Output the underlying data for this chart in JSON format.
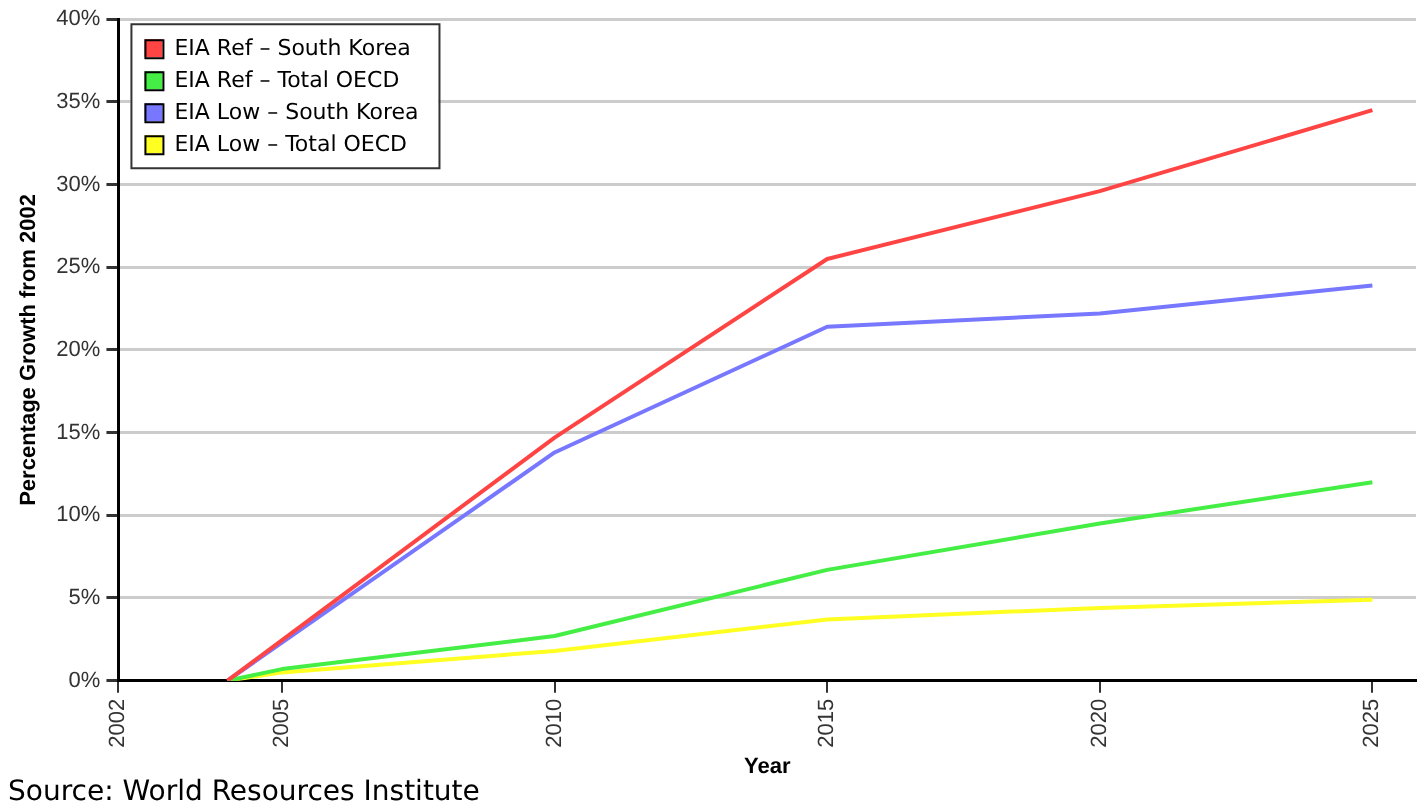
{
  "chart_data": {
    "type": "line",
    "xlabel": "Year",
    "ylabel": "Percentage Growth from 2002",
    "xlim": [
      2002,
      2025.8
    ],
    "xticks": [
      2002,
      2005,
      2010,
      2015,
      2020,
      2025
    ],
    "ylim": [
      0,
      40
    ],
    "yticks": [
      {
        "value": 0,
        "label": "0%"
      },
      {
        "value": 5,
        "label": "5%"
      },
      {
        "value": 10,
        "label": "10%"
      },
      {
        "value": 15,
        "label": "15%"
      },
      {
        "value": 20,
        "label": "20%"
      },
      {
        "value": 25,
        "label": "25%"
      },
      {
        "value": 30,
        "label": "30%"
      },
      {
        "value": 35,
        "label": "35%"
      },
      {
        "value": 40,
        "label": "40%"
      }
    ],
    "series": [
      {
        "name": "EIA Ref – South Korea",
        "color": "#ff4444",
        "x": [
          2004,
          2010,
          2015,
          2020,
          2025
        ],
        "values": [
          0,
          14.7,
          25.5,
          29.6,
          34.5
        ]
      },
      {
        "name": "EIA Ref – Total OECD",
        "color": "#44ee44",
        "x": [
          2004,
          2005,
          2010,
          2015,
          2020,
          2025
        ],
        "values": [
          0,
          0.7,
          2.7,
          6.7,
          9.5,
          12
        ]
      },
      {
        "name": "EIA Low – South Korea",
        "color": "#7777ff",
        "x": [
          2004,
          2010,
          2015,
          2020,
          2025
        ],
        "values": [
          0,
          13.8,
          21.4,
          22.2,
          23.9
        ]
      },
      {
        "name": "EIA Low – Total OECD",
        "color": "#ffff22",
        "x": [
          2004,
          2005,
          2010,
          2015,
          2020,
          2025
        ],
        "values": [
          0,
          0.5,
          1.8,
          3.7,
          4.4,
          4.9
        ]
      }
    ],
    "grid": "y",
    "legend": "top left",
    "marker": "none",
    "line_style": "solid",
    "annotations": [
      "Source: World Resources Institute"
    ]
  }
}
